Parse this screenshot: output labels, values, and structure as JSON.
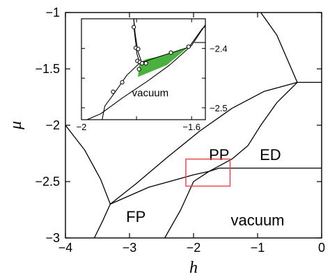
{
  "chart_data": {
    "type": "line",
    "title": "",
    "xlabel": "h",
    "ylabel": "μ",
    "xlim": [
      -4,
      0
    ],
    "ylim": [
      -3,
      -1
    ],
    "xticks": [
      -4,
      -3,
      -2,
      -1,
      0
    ],
    "xtick_labels": [
      "−4",
      "−3",
      "−2",
      "−1",
      "0"
    ],
    "yticks": [
      -3,
      -2.5,
      -2,
      -1.5,
      -1
    ],
    "ytick_labels": [
      "−3",
      "−2.5",
      "−2",
      "−1.5",
      "−1"
    ],
    "grid": false,
    "legend": "none",
    "regions": [
      {
        "label": "PP",
        "h": -1.6,
        "mu": -2.26
      },
      {
        "label": "ED",
        "h": -0.8,
        "mu": -2.26
      },
      {
        "label": "FP",
        "h": -2.9,
        "mu": -2.81
      },
      {
        "label": "vacuum",
        "h": -1.0,
        "mu": -2.84
      }
    ],
    "series": [
      {
        "values": [
          [
            -4.0,
            -2.0
          ],
          [
            -3.7,
            -2.22
          ],
          [
            -3.45,
            -2.48
          ],
          [
            -3.3,
            -2.7
          ]
        ]
      },
      {
        "values": [
          [
            -3.3,
            -2.7
          ],
          [
            -3.42,
            -2.85
          ],
          [
            -3.55,
            -3.0
          ]
        ]
      },
      {
        "values": [
          [
            -3.3,
            -2.7
          ],
          [
            -2.7,
            -2.55
          ],
          [
            -2.0,
            -2.44
          ],
          [
            -1.76,
            -2.41
          ],
          [
            -1.4,
            -2.3
          ],
          [
            -1.15,
            -2.18
          ],
          [
            -0.95,
            -2.0
          ],
          [
            -0.7,
            -1.8
          ],
          [
            -0.38,
            -1.62
          ]
        ]
      },
      {
        "values": [
          [
            -3.3,
            -2.7
          ],
          [
            -2.9,
            -2.52
          ],
          [
            -2.4,
            -2.28
          ],
          [
            -1.9,
            -2.05
          ],
          [
            -1.4,
            -1.85
          ],
          [
            -0.9,
            -1.7
          ],
          [
            -0.38,
            -1.62
          ]
        ]
      },
      {
        "values": [
          [
            -0.38,
            -1.62
          ],
          [
            -0.7,
            -1.2
          ],
          [
            -0.95,
            -1.0
          ]
        ]
      },
      {
        "values": [
          [
            -0.38,
            -1.62
          ],
          [
            0.0,
            -1.62
          ]
        ]
      },
      {
        "values": [
          [
            -1.76,
            -2.41
          ],
          [
            -1.6,
            -2.38
          ],
          [
            0.0,
            -2.38
          ]
        ]
      },
      {
        "values": [
          [
            -1.76,
            -2.41
          ],
          [
            -2.0,
            -2.5
          ],
          [
            -2.2,
            -2.75
          ],
          [
            -2.45,
            -3.0
          ]
        ]
      }
    ],
    "highlight_box": {
      "h": [
        -2.12,
        -1.43
      ],
      "mu": [
        -2.54,
        -2.3
      ],
      "color": "#e8484e"
    },
    "inset": {
      "type": "line",
      "xlim": [
        -2,
        -1.55
      ],
      "ylim": [
        -2.52,
        -2.35
      ],
      "xticks": [
        -2,
        -1.8,
        -1.6
      ],
      "xtick_labels": [
        "−2",
        "",
        "−1.6"
      ],
      "yticks": [
        -2.5,
        -2.45,
        -2.4,
        -2.35
      ],
      "ytick_labels": [
        "−2.5",
        "",
        "−2.4",
        ""
      ],
      "region_label": {
        "label": "vacuum",
        "h": -1.75,
        "mu": -2.475
      },
      "fill_color": "#4ab03e",
      "filled_region": [
        [
          -1.79,
          -2.424
        ],
        [
          -1.765,
          -2.418
        ],
        [
          -1.7,
          -2.412
        ],
        [
          -1.655,
          -2.404
        ],
        [
          -1.61,
          -2.397
        ],
        [
          -1.69,
          -2.428
        ],
        [
          -1.795,
          -2.448
        ]
      ],
      "series": [
        {
          "values": [
            [
              -1.81,
              -2.35
            ],
            [
              -1.808,
              -2.37
            ],
            [
              -1.803,
              -2.39
            ],
            [
              -1.799,
              -2.408
            ],
            [
              -1.793,
              -2.418
            ],
            [
              -1.786,
              -2.425
            ]
          ]
        },
        {
          "values": [
            [
              -1.81,
              -2.35
            ],
            [
              -1.805,
              -2.375
            ],
            [
              -1.795,
              -2.405
            ],
            [
              -1.783,
              -2.421
            ]
          ]
        },
        {
          "values": [
            [
              -1.79,
              -2.425
            ],
            [
              -1.72,
              -2.414
            ],
            [
              -1.61,
              -2.398
            ],
            [
              -1.56,
              -2.366
            ],
            [
              -1.55,
              -2.363
            ]
          ]
        },
        {
          "values": [
            [
              -1.59,
              -2.39
            ],
            [
              -1.55,
              -2.39
            ]
          ]
        },
        {
          "values": [
            [
              -1.55,
              -2.36
            ],
            [
              -1.6,
              -2.395
            ],
            [
              -1.68,
              -2.428
            ],
            [
              -1.76,
              -2.455
            ],
            [
              -1.85,
              -2.483
            ],
            [
              -1.93,
              -2.51
            ],
            [
              -1.98,
              -2.52
            ]
          ]
        },
        {
          "values": [
            [
              -1.79,
              -2.425
            ],
            [
              -1.835,
              -2.445
            ],
            [
              -1.88,
              -2.475
            ],
            [
              -1.915,
              -2.497
            ],
            [
              -1.925,
              -2.52
            ]
          ]
        }
      ],
      "points": [
        [
          -1.81,
          -2.364
        ],
        [
          -1.803,
          -2.399
        ],
        [
          -1.794,
          -2.401
        ],
        [
          -1.797,
          -2.421
        ],
        [
          -1.788,
          -2.423
        ],
        [
          -1.78,
          -2.425
        ],
        [
          -1.766,
          -2.425
        ],
        [
          -1.791,
          -2.435
        ],
        [
          -1.675,
          -2.407
        ],
        [
          -1.611,
          -2.397
        ],
        [
          -1.852,
          -2.457
        ],
        [
          -1.885,
          -2.473
        ]
      ]
    }
  }
}
